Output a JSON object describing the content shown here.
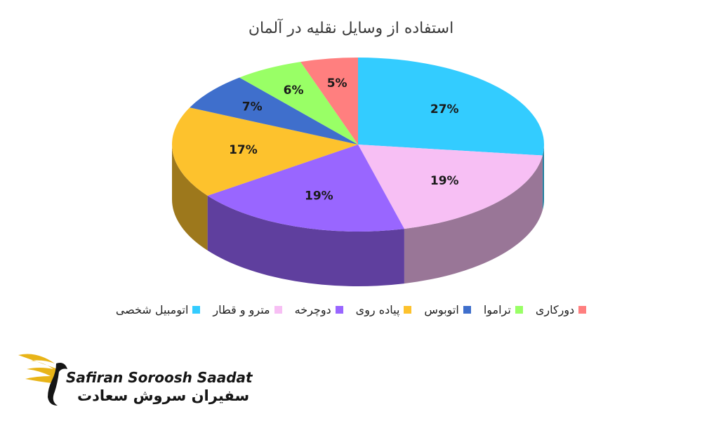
{
  "title": "استفاده از وسایل نقلیه در آلمان",
  "brand": {
    "name_en": "Safiran Soroosh Saadat",
    "name_fa": "سفیران سروش سعادت",
    "accent_color": "#E8B418"
  },
  "chart_data": {
    "type": "pie",
    "title": "استفاده از وسایل نقلیه در آلمان",
    "three_d": true,
    "legend_position": "bottom",
    "slices": [
      {
        "name": "اتومبیل شخصی",
        "value": 27,
        "label": "27%",
        "color": "#33CCFF"
      },
      {
        "name": "مترو و قطار",
        "value": 19,
        "label": "19%",
        "color": "#F7BFF4"
      },
      {
        "name": "دوچرخه",
        "value": 19,
        "label": "19%",
        "color": "#9966FF"
      },
      {
        "name": "پیاده روی",
        "value": 17,
        "label": "17%",
        "color": "#FDC22D"
      },
      {
        "name": "اتوبوس",
        "value": 7,
        "label": "7%",
        "color": "#3F6FCC"
      },
      {
        "name": "تراموا",
        "value": 6,
        "label": "6%",
        "color": "#99FF66"
      },
      {
        "name": "دورکاری",
        "value": 5,
        "label": "5%",
        "color": "#FF7F7F"
      }
    ]
  }
}
